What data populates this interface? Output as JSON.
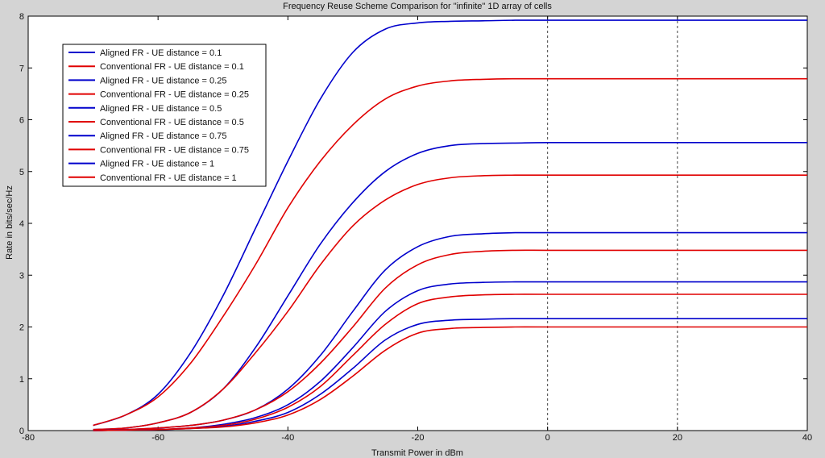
{
  "chart_data": {
    "type": "line",
    "title": "Frequency Reuse Scheme Comparison for \"infinite\" 1D array of cells",
    "xlabel": "Transmit Power in dBm",
    "ylabel": "Rate in bits/sec/Hz",
    "xlim": [
      -80,
      40
    ],
    "ylim": [
      0,
      8
    ],
    "xticks": [
      -80,
      -60,
      -40,
      -20,
      0,
      20,
      40
    ],
    "yticks": [
      0,
      1,
      2,
      3,
      4,
      5,
      6,
      7,
      8
    ],
    "grid": false,
    "vertical_dashed_lines": [
      0,
      20
    ],
    "legend_position": "top-left",
    "colors": {
      "aligned": "#0000cc",
      "conventional": "#e00000",
      "plot_bg": "#ffffff",
      "figure_bg": "#d4d4d4"
    },
    "x": [
      -70,
      -65,
      -60,
      -55,
      -50,
      -45,
      -40,
      -35,
      -30,
      -25,
      -20,
      -15,
      -10,
      -5,
      0,
      10,
      20,
      30,
      40
    ],
    "series": [
      {
        "name": "Aligned FR - UE distance = 0.1",
        "color": "#0000cc",
        "values": [
          0.1,
          0.3,
          0.7,
          1.5,
          2.6,
          3.9,
          5.2,
          6.4,
          7.3,
          7.75,
          7.87,
          7.9,
          7.91,
          7.92,
          7.92,
          7.92,
          7.92,
          7.92,
          7.92
        ]
      },
      {
        "name": "Conventional FR - UE distance = 0.1",
        "color": "#e00000",
        "values": [
          0.1,
          0.3,
          0.65,
          1.3,
          2.2,
          3.2,
          4.3,
          5.2,
          5.9,
          6.4,
          6.65,
          6.75,
          6.78,
          6.79,
          6.79,
          6.79,
          6.79,
          6.79,
          6.79
        ]
      },
      {
        "name": "Aligned FR - UE distance = 0.25",
        "color": "#0000cc",
        "values": [
          0.02,
          0.05,
          0.15,
          0.35,
          0.8,
          1.6,
          2.6,
          3.6,
          4.4,
          5.0,
          5.35,
          5.5,
          5.54,
          5.55,
          5.56,
          5.56,
          5.56,
          5.56,
          5.56
        ]
      },
      {
        "name": "Conventional FR - UE distance = 0.25",
        "color": "#e00000",
        "values": [
          0.02,
          0.05,
          0.15,
          0.35,
          0.8,
          1.5,
          2.3,
          3.2,
          3.95,
          4.45,
          4.75,
          4.88,
          4.92,
          4.93,
          4.93,
          4.93,
          4.93,
          4.93,
          4.93
        ]
      },
      {
        "name": "Aligned FR - UE distance = 0.5",
        "color": "#0000cc",
        "values": [
          0.01,
          0.02,
          0.05,
          0.1,
          0.2,
          0.4,
          0.8,
          1.45,
          2.3,
          3.1,
          3.55,
          3.75,
          3.8,
          3.82,
          3.82,
          3.82,
          3.82,
          3.82,
          3.82
        ]
      },
      {
        "name": "Conventional FR - UE distance = 0.5",
        "color": "#e00000",
        "values": [
          0.01,
          0.02,
          0.05,
          0.1,
          0.2,
          0.4,
          0.75,
          1.3,
          2.0,
          2.75,
          3.2,
          3.4,
          3.46,
          3.48,
          3.48,
          3.48,
          3.48,
          3.48,
          3.48
        ]
      },
      {
        "name": "Aligned FR - UE distance = 0.75",
        "color": "#0000cc",
        "values": [
          0.0,
          0.01,
          0.02,
          0.05,
          0.12,
          0.25,
          0.5,
          0.95,
          1.6,
          2.3,
          2.7,
          2.83,
          2.86,
          2.87,
          2.87,
          2.87,
          2.87,
          2.87,
          2.87
        ]
      },
      {
        "name": "Conventional FR - UE distance = 0.75",
        "color": "#e00000",
        "values": [
          0.0,
          0.01,
          0.02,
          0.05,
          0.1,
          0.22,
          0.45,
          0.85,
          1.45,
          2.05,
          2.45,
          2.58,
          2.62,
          2.63,
          2.63,
          2.63,
          2.63,
          2.63,
          2.63
        ]
      },
      {
        "name": "Aligned FR - UE distance = 1",
        "color": "#0000cc",
        "values": [
          0.0,
          0.01,
          0.02,
          0.04,
          0.08,
          0.18,
          0.35,
          0.7,
          1.2,
          1.75,
          2.05,
          2.13,
          2.15,
          2.16,
          2.16,
          2.16,
          2.16,
          2.16,
          2.16
        ]
      },
      {
        "name": "Conventional FR - UE distance = 1",
        "color": "#e00000",
        "values": [
          0.0,
          0.01,
          0.02,
          0.04,
          0.07,
          0.15,
          0.3,
          0.6,
          1.05,
          1.55,
          1.88,
          1.97,
          1.99,
          2.0,
          2.0,
          2.0,
          2.0,
          2.0,
          2.0
        ]
      }
    ]
  }
}
